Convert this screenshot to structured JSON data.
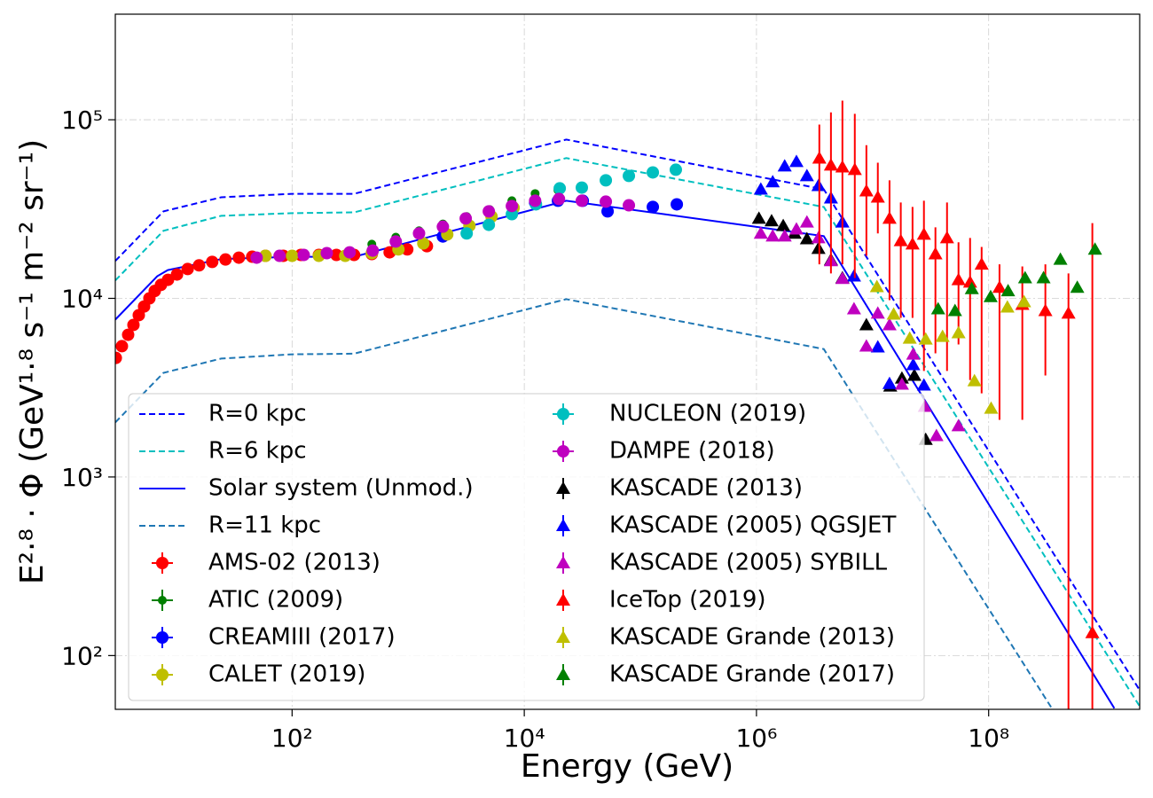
{
  "chart_data": {
    "type": "line",
    "xlabel": "Energy (GeV)",
    "ylabel": "E²·⁸ · Φ (GeV¹·⁸ s⁻¹ m⁻² sr⁻¹)",
    "xscale": "log",
    "yscale": "log",
    "grid": true,
    "legend": "lower left",
    "xlim": [
      3,
      2000000000
    ],
    "ylim": [
      50,
      390000
    ],
    "xticks": [
      {
        "value": 100,
        "label": "10²"
      },
      {
        "value": 10000,
        "label": "10⁴"
      },
      {
        "value": 1000000,
        "label": "10⁶"
      },
      {
        "value": 100000000,
        "label": "10⁸"
      }
    ],
    "yticks": [
      {
        "value": 100,
        "label": "10²"
      },
      {
        "value": 1000,
        "label": "10³"
      },
      {
        "value": 10000,
        "label": "10⁴"
      },
      {
        "value": 100000,
        "label": "10⁵"
      }
    ],
    "series": [
      {
        "name": "R=0 kpc",
        "type": "line",
        "linestyle": "dashed",
        "color": "#0000ff",
        "x": [
          3,
          7.8,
          24.5,
          100,
          342,
          23000,
          3800000,
          2000000000
        ],
        "values": [
          16200,
          30700,
          36800,
          38500,
          38500,
          77500,
          40800,
          64
        ]
      },
      {
        "name": "R=6 kpc",
        "type": "line",
        "linestyle": "dashed",
        "color": "#00bfbf",
        "x": [
          3,
          7.8,
          24.5,
          100,
          342,
          23000,
          3800000,
          2000000000
        ],
        "values": [
          12600,
          23900,
          29000,
          30000,
          30300,
          61000,
          32500,
          52
        ]
      },
      {
        "name": "Solar system (Unmod.)",
        "type": "line",
        "linestyle": "solid",
        "color": "#0000ff",
        "x": [
          3,
          6.9,
          8.5,
          24.5,
          100,
          342,
          23000,
          3800000,
          1210000000
        ],
        "values": [
          7600,
          13300,
          14400,
          16600,
          17100,
          17100,
          35200,
          22300,
          50.7
        ]
      },
      {
        "name": "R=11 kpc",
        "type": "line",
        "linestyle": "dashed",
        "color": "#1f77b4",
        "x": [
          3,
          7.8,
          24.5,
          100,
          342,
          23000,
          3800000,
          350000000
        ],
        "values": [
          2020,
          3830,
          4600,
          4860,
          4900,
          9900,
          5200,
          50.7
        ]
      },
      {
        "name": "AMS-02 (2013)",
        "type": "scatter",
        "marker": "circle",
        "color": "#ff0000",
        "x": [
          3.03,
          3.42,
          3.87,
          4.3,
          4.78,
          5.31,
          5.9,
          6.56,
          7.42,
          8.53,
          10.2,
          12.6,
          15.8,
          20.5,
          26.7,
          34.8,
          45.3,
          59,
          84,
          119,
          170,
          241,
          342,
          486,
          692,
          982,
          1450
        ],
        "values": [
          4640,
          5400,
          6250,
          7100,
          8050,
          9000,
          10000,
          11000,
          11900,
          12700,
          13600,
          14600,
          15300,
          16000,
          16500,
          16900,
          17100,
          17300,
          17300,
          17500,
          17500,
          17500,
          17500,
          17700,
          18100,
          18800,
          19600
        ]
      },
      {
        "name": "ATIC (2009)",
        "type": "scatter",
        "marker": "small-circle",
        "color": "#008000",
        "x": [
          486,
          782,
          1240,
          1990,
          3190,
          5040,
          7820,
          12400,
          19500
        ],
        "values": [
          20100,
          22000,
          23900,
          26100,
          28700,
          31400,
          35200,
          38600,
          40400
        ]
      },
      {
        "name": "CREAMIII (2017)",
        "type": "scatter",
        "marker": "circle",
        "color": "#0000ff",
        "x": [
          1990,
          12400,
          19500,
          31900,
          52200,
          128000,
          206000
        ],
        "values": [
          22200,
          34400,
          35200,
          35200,
          30700,
          32500,
          33600
        ]
      },
      {
        "name": "CALET (2019)",
        "type": "scatter",
        "marker": "circle",
        "color": "#bfbf00",
        "x": [
          59,
          100,
          170,
          287,
          486,
          824,
          1350,
          2170,
          3370,
          5220,
          8090
        ],
        "values": [
          17300,
          17300,
          17300,
          17300,
          17900,
          18800,
          20300,
          22800,
          25500,
          28700,
          32100
        ]
      },
      {
        "name": "NUCLEON (2019)",
        "type": "scatter",
        "marker": "circle",
        "color": "#00bfbf",
        "x": [
          3190,
          4950,
          7820,
          12600,
          20200,
          31300,
          50400,
          79600,
          128000,
          202000
        ],
        "values": [
          23100,
          25800,
          29600,
          33600,
          41300,
          41700,
          45800,
          48500,
          50700,
          52500
        ]
      },
      {
        "name": "DAMPE (2018)",
        "type": "scatter",
        "marker": "circle",
        "color": "#bf00bf",
        "x": [
          49.5,
          78,
          126,
          199,
          313,
          495,
          782,
          1240,
          1990,
          3130,
          4950,
          7820,
          12400,
          19900,
          31300,
          50400,
          79600
        ],
        "values": [
          16900,
          17300,
          17500,
          17900,
          18100,
          18500,
          20800,
          23100,
          25200,
          28000,
          30700,
          32900,
          35200,
          36000,
          35200,
          34800,
          33200
        ]
      },
      {
        "name": "KASCADE (2013)",
        "type": "scatter",
        "marker": "triangle",
        "color": "#000000",
        "x": [
          1050000,
          1350000,
          1700000,
          2130000,
          2720000,
          3420000,
          4380000,
          5500000,
          8850000,
          14200000,
          17900000,
          22900000,
          28700000
        ],
        "values": [
          28000,
          27100,
          25500,
          23100,
          21500,
          19000,
          16400,
          13000,
          7100,
          3220,
          3570,
          3700,
          1620
        ]
      },
      {
        "name": "KASCADE (2005) QGSJET",
        "type": "scatter",
        "marker": "triangle",
        "color": "#0000ff",
        "x": [
          1090000,
          1380000,
          1750000,
          2210000,
          2720000,
          3420000,
          4380000,
          5500000,
          6920000,
          11100000,
          14000000,
          22400000,
          27700000
        ],
        "values": [
          40800,
          44800,
          55000,
          58200,
          48500,
          42700,
          36400,
          26700,
          13300,
          5330,
          3330,
          4240,
          3260
        ]
      },
      {
        "name": "KASCADE (2005) SYBILL",
        "type": "scatter",
        "marker": "triangle",
        "color": "#bf00bf",
        "x": [
          1090000,
          1380000,
          1750000,
          2210000,
          2720000,
          3420000,
          4380000,
          5500000,
          6920000,
          8850000,
          11100000,
          14000000,
          17900000,
          22400000,
          28200000,
          35500000,
          55000000
        ],
        "values": [
          23100,
          22300,
          22300,
          24400,
          26700,
          21800,
          16200,
          12900,
          8720,
          5390,
          8240,
          7100,
          3300,
          4860,
          2480,
          1700,
          1930
        ]
      },
      {
        "name": "IceTop (2019)",
        "type": "scatter",
        "marker": "triangle",
        "color": "#ff0000",
        "x": [
          3480000,
          4380000,
          5500000,
          7030000,
          8850000,
          11100000,
          14000000,
          17500000,
          22100000,
          27700000,
          34800000,
          43800000,
          55000000,
          69200000,
          87000000,
          124000000,
          195000000,
          308000000,
          487000000,
          782000000
        ],
        "values": [
          60900,
          55600,
          54300,
          52500,
          39900,
          36800,
          28000,
          21000,
          20100,
          22800,
          17700,
          21800,
          12700,
          12300,
          15500,
          11500,
          9230,
          8520,
          8240,
          134
        ],
        "ylo": [
          15500,
          13800,
          15500,
          13000,
          17300,
          23100,
          9770,
          7780,
          7780,
          3920,
          4920,
          3920,
          5520,
          3490,
          2940,
          2090,
          2090,
          3700,
          50,
          50
        ],
        "yhi": [
          94000,
          110000,
          128000,
          108000,
          72000,
          57500,
          45800,
          34400,
          32500,
          35200,
          25000,
          34400,
          20600,
          21800,
          19400,
          15500,
          15100,
          15500,
          13800,
          26400
        ]
      },
      {
        "name": "KASCADE Grande (2013)",
        "type": "scatter",
        "marker": "triangle",
        "color": "#bfbf00",
        "x": [
          10900000,
          15200000,
          20900000,
          28700000,
          40100000,
          55000000,
          75500000,
          105000000,
          145000000,
          202000000
        ],
        "values": [
          11600,
          8140,
          5970,
          5900,
          6110,
          6400,
          3450,
          2420,
          8920,
          9550
        ]
      },
      {
        "name": "KASCADE Grande (2017)",
        "type": "scatter",
        "marker": "triangle",
        "color": "#008000",
        "x": [
          36700000,
          51300000,
          71600000,
          104000000,
          147000000,
          206000000,
          297000000,
          415000000,
          580000000,
          824000000
        ],
        "values": [
          8720,
          8520,
          11300,
          10200,
          11000,
          13000,
          13000,
          16500,
          11500,
          18800
        ]
      }
    ]
  }
}
